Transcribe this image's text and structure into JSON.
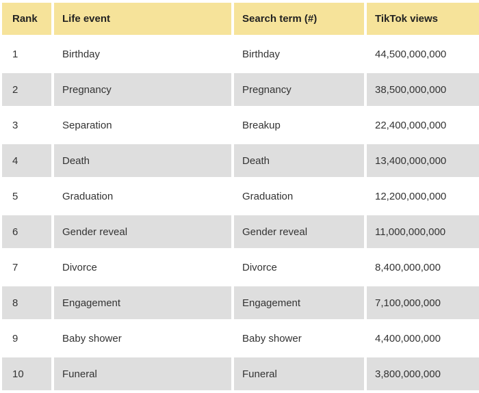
{
  "table": {
    "headers": [
      "Rank",
      "Life event",
      "Search term (#)",
      "TikTok views"
    ],
    "rows": [
      [
        "1",
        "Birthday",
        "Birthday",
        "44,500,000,000"
      ],
      [
        "2",
        "Pregnancy",
        "Pregnancy",
        "38,500,000,000"
      ],
      [
        "3",
        "Separation",
        "Breakup",
        "22,400,000,000"
      ],
      [
        "4",
        "Death",
        "Death",
        "13,400,000,000"
      ],
      [
        "5",
        "Graduation",
        "Graduation",
        "12,200,000,000"
      ],
      [
        "6",
        "Gender reveal",
        "Gender reveal",
        "11,000,000,000"
      ],
      [
        "7",
        "Divorce",
        "Divorce",
        "8,400,000,000"
      ],
      [
        "8",
        "Engagement",
        "Engagement",
        "7,100,000,000"
      ],
      [
        "9",
        "Baby shower",
        "Baby shower",
        "4,400,000,000"
      ],
      [
        "10",
        "Funeral",
        "Funeral",
        "3,800,000,000"
      ]
    ]
  },
  "colors": {
    "header_bg": "#f6e39a",
    "row_alt_bg": "#dedede",
    "row_bg": "#ffffff"
  }
}
